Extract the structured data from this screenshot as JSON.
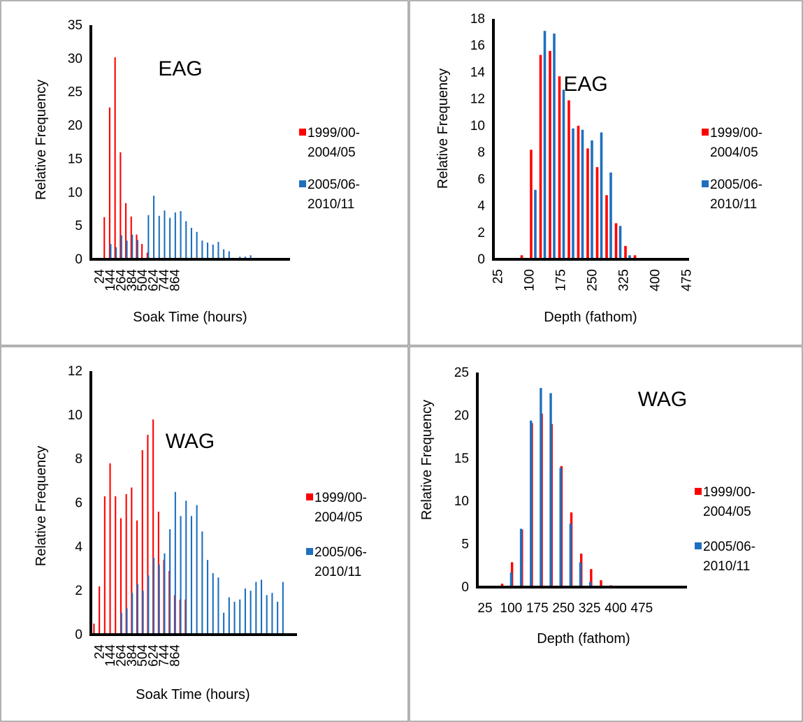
{
  "colors": {
    "series1": "#ff0000",
    "series2": "#1f6fbf",
    "axis": "#000000",
    "border": "#999999"
  },
  "chart_data": [
    {
      "type": "bar",
      "title": "EAG",
      "xlabel": "Soak Time (hours)",
      "ylabel": "Relative Frequency",
      "ylim": [
        0,
        35
      ],
      "yticks": [
        "0",
        "5",
        "10",
        "15",
        "20",
        "25",
        "30",
        "35"
      ],
      "x_tick_labels": [
        "24",
        "144",
        "264",
        "384",
        "504",
        "624",
        "744",
        "864"
      ],
      "legend_position": "right",
      "series": [
        {
          "name": "1999/00-\n2004/05",
          "values": [
            0,
            6.3,
            22.7,
            30.2,
            16,
            8.4,
            6.4,
            3.7,
            2.3,
            1.0,
            0,
            0,
            0,
            0,
            0,
            0,
            0,
            0,
            0,
            0,
            0,
            0,
            0,
            0,
            0,
            0,
            0,
            0,
            0,
            0,
            0,
            0,
            0,
            0,
            0,
            0,
            0,
            0,
            0,
            0,
            0,
            0,
            0,
            0,
            0,
            0,
            0,
            0,
            0,
            0,
            0,
            0,
            0,
            0,
            0,
            0,
            0,
            0,
            0,
            0,
            0,
            0,
            0,
            0
          ]
        },
        {
          "name": "2005/06-\n2010/11",
          "values": [
            0,
            0,
            0,
            2.3,
            1.8,
            3.6,
            2.8,
            3.7,
            2.9,
            0,
            6.6,
            9.5,
            6.5,
            7.3,
            6.2,
            7.0,
            7.2,
            5.7,
            4.7,
            4.1,
            2.8,
            2.5,
            2.2,
            2.6,
            1.5,
            1.2,
            0.2,
            0.4,
            0.4,
            0.6,
            0,
            0,
            0,
            0,
            0,
            0,
            0
          ]
        }
      ]
    },
    {
      "type": "bar",
      "title": "EAG",
      "xlabel": "Depth (fathom)",
      "ylabel": "Relative Frequency",
      "ylim": [
        0,
        18
      ],
      "yticks": [
        "0",
        "2",
        "4",
        "6",
        "8",
        "10",
        "12",
        "14",
        "16",
        "18"
      ],
      "x_tick_labels": [
        "25",
        "100",
        "175",
        "250",
        "325",
        "400",
        "475"
      ],
      "legend_position": "right",
      "series": [
        {
          "name": "1999/00-\n2004/05",
          "values": [
            0,
            0,
            0,
            0.3,
            8.2,
            15.3,
            15.6,
            13.7,
            11.9,
            10.0,
            8.3,
            6.9,
            4.8,
            2.7,
            1.0,
            0.3,
            0.1,
            0,
            0,
            0
          ]
        },
        {
          "name": "2005/06-\n2010/11",
          "values": [
            0,
            0,
            0,
            0,
            5.2,
            17.1,
            16.9,
            12.7,
            9.8,
            9.7,
            8.9,
            9.5,
            6.5,
            2.5,
            0.3,
            0,
            0,
            0,
            0,
            0
          ]
        }
      ]
    },
    {
      "type": "bar",
      "title": "WAG",
      "xlabel": "Soak Time (hours)",
      "ylabel": "Relative Frequency",
      "ylim": [
        0,
        12
      ],
      "yticks": [
        "0",
        "2",
        "4",
        "6",
        "8",
        "10",
        "12"
      ],
      "x_tick_labels": [
        "24",
        "144",
        "264",
        "384",
        "504",
        "624",
        "744",
        "864"
      ],
      "legend_position": "right",
      "series": [
        {
          "name": "1999/00-\n2004/05",
          "values": [
            0.5,
            2.2,
            6.3,
            7.8,
            6.3,
            5.3,
            6.4,
            6.7,
            5.2,
            8.4,
            9.1,
            9.8,
            5.6,
            3.4,
            2.9,
            1.8,
            1.6,
            1.6,
            0,
            0,
            0,
            0,
            0,
            0,
            0,
            0,
            0,
            0,
            0,
            0,
            0,
            0,
            0,
            0,
            0,
            0,
            0,
            0,
            0
          ]
        },
        {
          "name": "2005/06-\n2010/11",
          "values": [
            0,
            0,
            0,
            0,
            0,
            1.0,
            1.2,
            1.9,
            2.3,
            2.0,
            2.7,
            3.5,
            3.2,
            3.7,
            4.8,
            6.5,
            5.4,
            6.1,
            5.4,
            5.9,
            4.7,
            3.4,
            2.8,
            2.6,
            1.0,
            1.7,
            1.5,
            1.6,
            2.1,
            2.0,
            2.4,
            2.5,
            1.8,
            1.9,
            1.5,
            2.4,
            0
          ]
        }
      ]
    },
    {
      "type": "bar",
      "title": "WAG",
      "xlabel": "Depth (fathom)",
      "ylabel": "Relative Frequency",
      "ylim": [
        0,
        25
      ],
      "yticks": [
        "0",
        "5",
        "10",
        "15",
        "20",
        "25"
      ],
      "x_tick_labels": [
        "25",
        "100",
        "175",
        "250",
        "325",
        "400",
        "475"
      ],
      "legend_position": "right",
      "series": [
        {
          "name": "1999/00-\n2004/05",
          "values": [
            0,
            0,
            0.4,
            2.9,
            6.7,
            19.1,
            20.2,
            19.0,
            14.1,
            8.7,
            3.9,
            2.1,
            0.8,
            0.2,
            0,
            0,
            0,
            0,
            0
          ]
        },
        {
          "name": "2005/06-\n2010/11",
          "values": [
            0,
            0,
            0,
            1.7,
            6.8,
            19.4,
            23.2,
            22.6,
            13.9,
            7.4,
            2.9,
            0.6,
            0.1,
            0,
            0,
            0,
            0,
            0,
            0
          ]
        }
      ]
    }
  ]
}
